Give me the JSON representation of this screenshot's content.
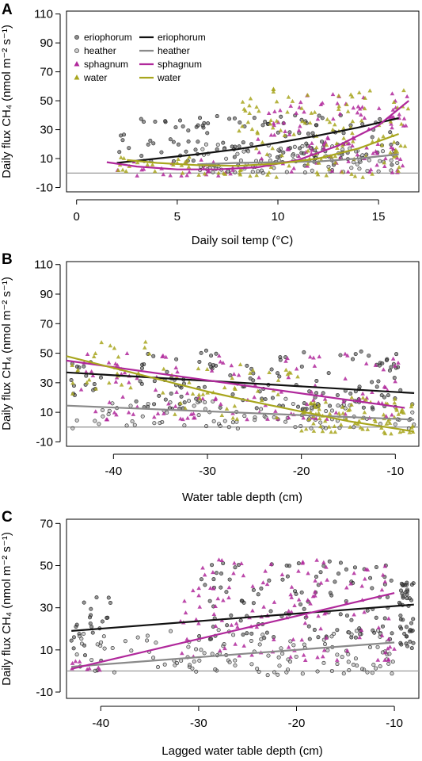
{
  "chart_data": [
    {
      "panel": "A",
      "type": "scatter",
      "xlabel": "Daily soil temp (°C)",
      "ylabel": "Daily flux CH₄ (nmol m⁻² s⁻¹)",
      "xlim": [
        -0.5,
        17
      ],
      "ylim": [
        -13,
        112
      ],
      "xticks": [
        0,
        5,
        10,
        15
      ],
      "yticks": [
        -10,
        10,
        30,
        50,
        70,
        90,
        110
      ],
      "reference_line_y": 0,
      "legend": {
        "placement": "top-left",
        "point_labels": [
          "eriophorum",
          "heather",
          "sphagnum",
          "water"
        ],
        "line_labels": [
          "eriophorum",
          "heather",
          "sphagnum",
          "water"
        ]
      },
      "series": [
        {
          "name": "eriophorum",
          "marker": "circle",
          "color": "#404040",
          "point_regions": [
            {
              "xr": [
                2,
                16
              ],
              "yr": [
                5,
                40
              ],
              "n": 130
            }
          ],
          "fit": [
            [
              2,
              7
            ],
            [
              4,
              10
            ],
            [
              6,
              13
            ],
            [
              8,
              16.5
            ],
            [
              10,
              21
            ],
            [
              12,
              26
            ],
            [
              14,
              31.5
            ],
            [
              16,
              38
            ]
          ]
        },
        {
          "name": "heather",
          "marker": "circle",
          "color": "#a8a8a8",
          "point_regions": [
            {
              "xr": [
                6,
                16
              ],
              "yr": [
                0,
                20
              ],
              "n": 95
            }
          ],
          "fit": [
            [
              6,
              6
            ],
            [
              8,
              7
            ],
            [
              10,
              7.5
            ],
            [
              12,
              8
            ],
            [
              14,
              10
            ],
            [
              16,
              13
            ]
          ]
        },
        {
          "name": "sphagnum",
          "marker": "triangle",
          "color": "#b0289b",
          "point_regions": [
            {
              "xr": [
                2,
                8
              ],
              "yr": [
                -2,
                10
              ],
              "n": 25
            },
            {
              "xr": [
                9,
                16.5
              ],
              "yr": [
                0,
                55
              ],
              "n": 110
            }
          ],
          "fit": [
            [
              1.5,
              7.5
            ],
            [
              3,
              4.5
            ],
            [
              5,
              2.5
            ],
            [
              7,
              2.5
            ],
            [
              9,
              4
            ],
            [
              11,
              9
            ],
            [
              13,
              19
            ],
            [
              15,
              33
            ],
            [
              16.5,
              50
            ]
          ]
        },
        {
          "name": "water",
          "marker": "triangle",
          "color": "#a8a61e",
          "point_regions": [
            {
              "xr": [
                2,
                8
              ],
              "yr": [
                -2,
                12
              ],
              "n": 25
            },
            {
              "xr": [
                8,
                16.5
              ],
              "yr": [
                -3,
                60
              ],
              "n": 130
            }
          ],
          "fit": [
            [
              2.5,
              9
            ],
            [
              4,
              7
            ],
            [
              6,
              5.5
            ],
            [
              8,
              5
            ],
            [
              10,
              6.5
            ],
            [
              12,
              10
            ],
            [
              14,
              17
            ],
            [
              16,
              27
            ]
          ]
        }
      ]
    },
    {
      "panel": "B",
      "type": "scatter",
      "xlabel": "Water table depth (cm)",
      "ylabel": "Daily flux CH₄ (nmol m⁻² s⁻¹)",
      "xlim": [
        -45,
        -7.5
      ],
      "ylim": [
        -13,
        112
      ],
      "xticks": [
        -40,
        -30,
        -20,
        -10
      ],
      "yticks": [
        -10,
        10,
        30,
        50,
        70,
        90,
        110
      ],
      "reference_line_y": 0,
      "series": [
        {
          "name": "eriophorum",
          "marker": "circle",
          "color": "#404040",
          "point_regions": [
            {
              "xr": [
                -44.5,
                -41
              ],
              "yr": [
                20,
                45
              ],
              "n": 15
            },
            {
              "xr": [
                -38,
                -9
              ],
              "yr": [
                12,
                52
              ],
              "n": 130
            }
          ],
          "fit": [
            [
              -45,
              37
            ],
            [
              -8,
              23
            ]
          ]
        },
        {
          "name": "heather",
          "marker": "circle",
          "color": "#a8a8a8",
          "point_regions": [
            {
              "xr": [
                -44.5,
                -8
              ],
              "yr": [
                -1,
                20
              ],
              "n": 100
            }
          ],
          "fit": [
            [
              -45,
              14.5
            ],
            [
              -8,
              5
            ]
          ]
        },
        {
          "name": "sphagnum",
          "marker": "triangle",
          "color": "#b0289b",
          "point_regions": [
            {
              "xr": [
                -44.5,
                -9
              ],
              "yr": [
                5,
                50
              ],
              "n": 120
            }
          ],
          "fit": [
            [
              -45,
              45
            ],
            [
              -9,
              13
            ]
          ]
        },
        {
          "name": "water",
          "marker": "triangle",
          "color": "#a8a61e",
          "point_regions": [
            {
              "xr": [
                -44.5,
                -36
              ],
              "yr": [
                20,
                60
              ],
              "n": 25
            },
            {
              "xr": [
                -35,
                -20
              ],
              "yr": [
                5,
                45
              ],
              "n": 40
            },
            {
              "xr": [
                -20,
                -8
              ],
              "yr": [
                -5,
                20
              ],
              "n": 85
            }
          ],
          "fit": [
            [
              -45,
              48
            ],
            [
              -40,
              40
            ],
            [
              -35,
              32
            ],
            [
              -30,
              24
            ],
            [
              -25,
              17
            ],
            [
              -20,
              10.5
            ],
            [
              -15,
              4
            ],
            [
              -10,
              -1
            ],
            [
              -8,
              -3
            ]
          ]
        }
      ]
    },
    {
      "panel": "C",
      "type": "scatter",
      "xlabel": "Lagged water table depth (cm)",
      "ylabel": "Daily flux CH₄ (nmol m⁻² s⁻¹)",
      "xlim": [
        -43.5,
        -7.5
      ],
      "ylim": [
        -13,
        72
      ],
      "xticks": [
        -40,
        -30,
        -20,
        -10
      ],
      "yticks": [
        -10,
        10,
        30,
        50,
        70
      ],
      "reference_line_y": 0,
      "series": [
        {
          "name": "eriophorum",
          "marker": "circle",
          "color": "#404040",
          "point_regions": [
            {
              "xr": [
                -43,
                -38
              ],
              "yr": [
                0,
                35
              ],
              "n": 25
            },
            {
              "xr": [
                -30,
                -10
              ],
              "yr": [
                15,
                52
              ],
              "n": 110
            },
            {
              "xr": [
                -9.5,
                -8
              ],
              "yr": [
                10,
                42
              ],
              "n": 45
            }
          ],
          "fit": [
            [
              -43,
              19
            ],
            [
              -8,
              31.5
            ]
          ]
        },
        {
          "name": "heather",
          "marker": "circle",
          "color": "#a8a8a8",
          "point_regions": [
            {
              "xr": [
                -43,
                -10
              ],
              "yr": [
                -2,
                20
              ],
              "n": 130
            }
          ],
          "fit": [
            [
              -43,
              2
            ],
            [
              -10,
              13.5
            ]
          ]
        },
        {
          "name": "sphagnum",
          "marker": "triangle",
          "color": "#b0289b",
          "point_regions": [
            {
              "xr": [
                -43,
                -40
              ],
              "yr": [
                0,
                5
              ],
              "n": 8
            },
            {
              "xr": [
                -32,
                -10
              ],
              "yr": [
                5,
                53
              ],
              "n": 130
            }
          ],
          "fit": [
            [
              -43,
              1
            ],
            [
              -10,
              37
            ]
          ]
        }
      ]
    }
  ]
}
